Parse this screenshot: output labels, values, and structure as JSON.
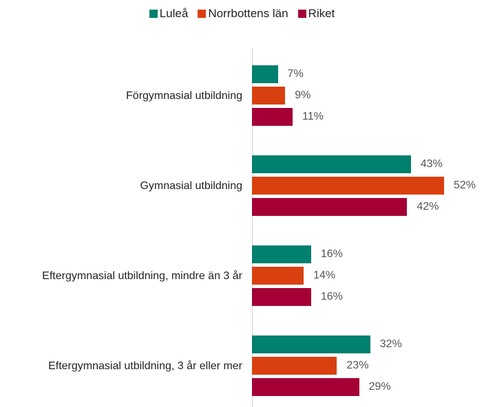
{
  "chart_data": {
    "type": "bar",
    "orientation": "horizontal",
    "categories": [
      "Förgymnasial utbildning",
      "Gymnasial utbildning",
      "Eftergymnasial utbildning, mindre än 3 år",
      "Eftergymnasial utbildning, 3 år eller mer"
    ],
    "series": [
      {
        "name": "Luleå",
        "color": "#00806f",
        "values": [
          7,
          43,
          16,
          32
        ],
        "value_labels": [
          "7%",
          "43%",
          "16%",
          "32%"
        ]
      },
      {
        "name": "Norrbottens län",
        "color": "#d9400f",
        "values": [
          9,
          52,
          14,
          23
        ],
        "value_labels": [
          "9%",
          "52%",
          "14%",
          "23%"
        ]
      },
      {
        "name": "Riket",
        "color": "#a50035",
        "values": [
          11,
          42,
          16,
          29
        ],
        "value_labels": [
          "11%",
          "42%",
          "16%",
          "29%"
        ]
      }
    ],
    "legend": "top"
  }
}
